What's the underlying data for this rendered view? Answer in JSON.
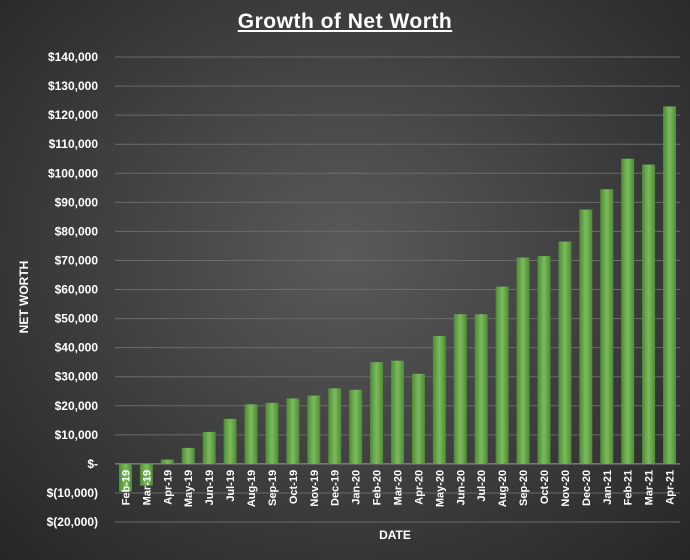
{
  "chart_data": {
    "type": "bar",
    "title": "Growth of Net Worth",
    "xlabel": "DATE",
    "ylabel": "NET WORTH",
    "ylim": [
      -20000,
      140000
    ],
    "ytick_step": 10000,
    "ytick_labels": [
      "$(20,000)",
      "$(10,000)",
      "$-",
      "$10,000",
      "$20,000",
      "$30,000",
      "$40,000",
      "$50,000",
      "$60,000",
      "$70,000",
      "$80,000",
      "$90,000",
      "$100,000",
      "$110,000",
      "$120,000",
      "$130,000",
      "$140,000"
    ],
    "categories": [
      "Feb-19",
      "Mar-19",
      "Apr-19",
      "May-19",
      "Jun-19",
      "Jul-19",
      "Aug-19",
      "Sep-19",
      "Oct-19",
      "Nov-19",
      "Dec-19",
      "Jan-20",
      "Feb-20",
      "Mar-20",
      "Apr-20",
      "May-20",
      "Jun-20",
      "Jul-20",
      "Aug-20",
      "Sep-20",
      "Oct-20",
      "Nov-20",
      "Dec-20",
      "Jan-21",
      "Feb-21",
      "Mar-21",
      "Apr-21"
    ],
    "values": [
      -9500,
      -7500,
      1500,
      5500,
      11000,
      15500,
      20500,
      21000,
      22500,
      23500,
      26000,
      25500,
      35000,
      35500,
      31000,
      44000,
      51500,
      51500,
      61000,
      71000,
      71500,
      76500,
      87500,
      94500,
      105000,
      103000,
      123000
    ],
    "grid": true,
    "legend": "none",
    "bar_color": "#6aa84f"
  }
}
